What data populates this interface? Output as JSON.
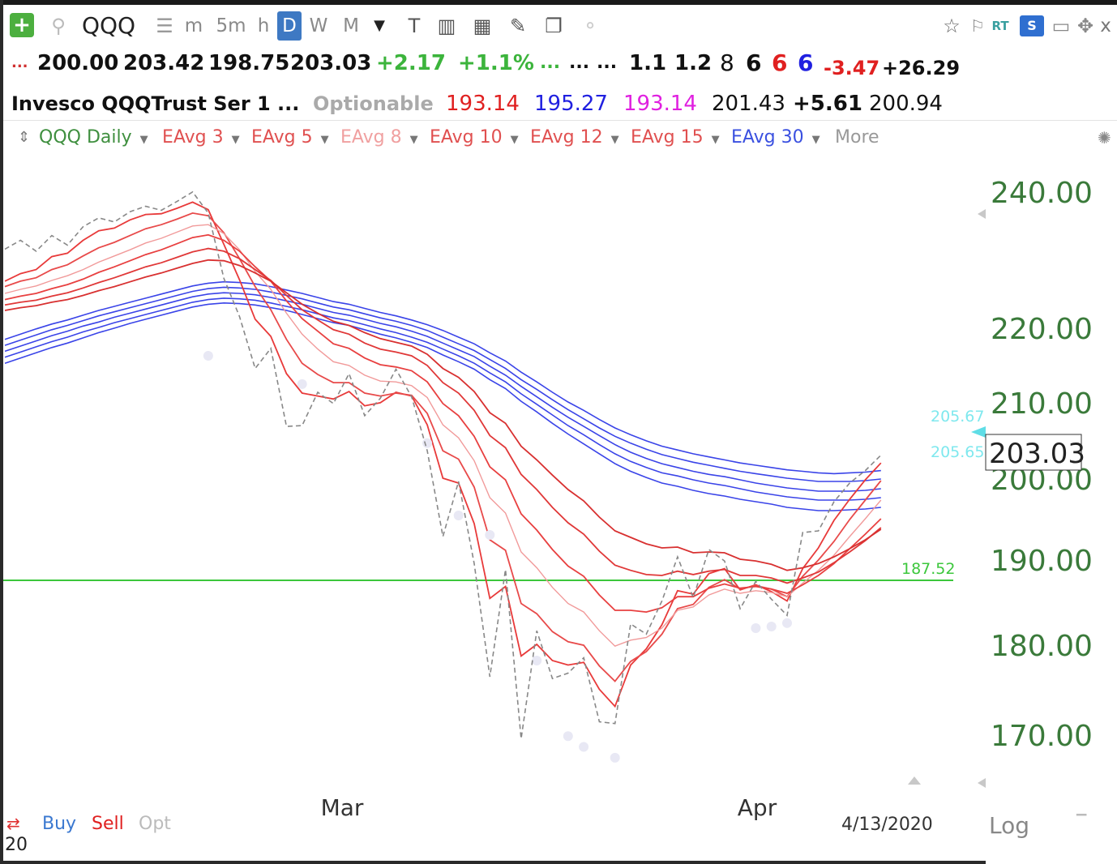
{
  "toolbar": {
    "add": "+",
    "symbol": "QQQ",
    "intervals": [
      "m",
      "5m",
      "h",
      "D",
      "W",
      "M"
    ],
    "active_interval": "D",
    "rt_label": "RT",
    "s_label": "S",
    "close_label": "x"
  },
  "quote": {
    "prefix": "...",
    "open": "200.00",
    "high": "203.42",
    "low": "198.75",
    "close": "203.03",
    "change": "+2.17",
    "change_pct": "+1.1%",
    "dots1": "...",
    "dots2": "...",
    "dots3": "...",
    "v1": "1.1",
    "v2": "1.2",
    "n1": "8",
    "n2": "6",
    "n3": "6",
    "n4": "6",
    "neg": "-3.47",
    "pos": "+26.29"
  },
  "quote2": {
    "name": "Invesco QQQTrust Ser 1",
    "dots": "...",
    "optionable": "Optionable",
    "p1": "193.14",
    "p2": "195.27",
    "p3": "193.14",
    "p4": "201.43",
    "p5": "+5.61",
    "p6": "200.94"
  },
  "indicators": [
    {
      "label": "QQQ Daily",
      "color": "#3f8f3f"
    },
    {
      "label": "EAvg 3",
      "color": "#e05050"
    },
    {
      "label": "EAvg 5",
      "color": "#e05050"
    },
    {
      "label": "EAvg 8",
      "color": "#f0a0a0"
    },
    {
      "label": "EAvg 10",
      "color": "#e05050"
    },
    {
      "label": "EAvg 12",
      "color": "#e05050"
    },
    {
      "label": "EAvg 15",
      "color": "#e05050"
    },
    {
      "label": "EAvg 30",
      "color": "#3a50e0"
    }
  ],
  "more_label": "More",
  "chart_data": {
    "type": "line",
    "x_ticks": [
      "Mar",
      "Apr"
    ],
    "y_ticks": [
      "240.00",
      "220.00",
      "210.00",
      "200.00",
      "190.00",
      "180.00",
      "170.00"
    ],
    "ylim": [
      165,
      243
    ],
    "scale": "log",
    "last_price": "203.03",
    "last_price_value": 203.03,
    "horizontal_line": {
      "value": 187.52,
      "label": "187.52",
      "color": "#3cc73c"
    },
    "marker_labels": [
      {
        "value": 205.67,
        "label": "205.67"
      },
      {
        "value": 205.65,
        "label": "205.65"
      }
    ],
    "date_label": "4/13/2020",
    "log_label": "Log",
    "footer_buttons": [
      "Buy",
      "Sell",
      "Opt"
    ],
    "corner_label": "20",
    "price_series": [
      231.5,
      232.8,
      231.2,
      233.5,
      232.1,
      234.8,
      236.1,
      235.5,
      237.0,
      237.8,
      237.2,
      238.5,
      239.9,
      236.8,
      227.2,
      221.6,
      214.5,
      217.2,
      206.8,
      206.9,
      211.3,
      209.8,
      213.8,
      208.2,
      210.5,
      214.4,
      210.7,
      203.6,
      192.8,
      199.6,
      189.5,
      176.4,
      188.8,
      169.5,
      181.6,
      176.2,
      176.8,
      178.5,
      171.4,
      171.2,
      182.4,
      181.2,
      185.1,
      190.3,
      185.5,
      191.2,
      189.8,
      184.2,
      187.4,
      185.3,
      183.4,
      193.3,
      193.5,
      197.1,
      199.4,
      201.0,
      203.03
    ],
    "ema_fast": [
      [
        226.8,
        227.9,
        228.5,
        230.4,
        230.9,
        232.8,
        234.2,
        234.6,
        235.8,
        236.6,
        236.7,
        237.5,
        238.4,
        237.3,
        232.2,
        227.0,
        221.2,
        218.8,
        213.8,
        211.2,
        210.8,
        210.4,
        211.4,
        209.5,
        209.9,
        211.3,
        210.8,
        207.0,
        200.0,
        199.4,
        194.4,
        185.4,
        186.8,
        178.7,
        180.0,
        178.2,
        177.7,
        178.0,
        175.0,
        173.1,
        177.7,
        179.5,
        182.3,
        186.3,
        185.9,
        188.3,
        188.9,
        186.4,
        187.0,
        186.2,
        185.1,
        188.9,
        191.4,
        194.8,
        197.4,
        199.8,
        202.0
      ],
      [
        226.0,
        226.8,
        227.3,
        228.5,
        229.2,
        230.5,
        231.7,
        232.5,
        233.5,
        234.5,
        235.1,
        235.9,
        236.8,
        236.4,
        233.9,
        230.1,
        226.0,
        222.6,
        218.4,
        215.2,
        213.7,
        212.6,
        212.6,
        211.2,
        210.8,
        211.2,
        210.9,
        208.5,
        203.6,
        202.5,
        198.9,
        192.4,
        191.1,
        184.8,
        183.6,
        181.5,
        180.3,
        179.9,
        177.6,
        175.9,
        178.1,
        179.2,
        181.2,
        184.2,
        184.7,
        186.7,
        187.6,
        186.5,
        186.9,
        186.5,
        185.6,
        188.0,
        189.9,
        192.2,
        194.9,
        197.3,
        199.7
      ],
      [
        225.0,
        225.6,
        226.1,
        226.9,
        227.6,
        228.5,
        229.6,
        230.5,
        231.4,
        232.4,
        233.1,
        234.0,
        234.9,
        235.1,
        233.8,
        231.4,
        228.2,
        225.6,
        222.1,
        219.1,
        217.1,
        215.4,
        214.9,
        213.6,
        212.8,
        212.7,
        212.2,
        210.6,
        207.0,
        205.3,
        202.3,
        197.6,
        195.7,
        190.9,
        189.0,
        186.7,
        184.8,
        183.8,
        181.6,
        179.8,
        180.5,
        180.8,
        181.9,
        184.0,
        184.4,
        185.8,
        186.5,
        186.0,
        186.3,
        186.1,
        185.6,
        187.2,
        188.7,
        190.5,
        192.8,
        195.0,
        197.3
      ],
      [
        224.1,
        224.6,
        225.0,
        225.7,
        226.3,
        227.1,
        228.1,
        228.9,
        229.8,
        230.7,
        231.4,
        232.3,
        233.2,
        233.6,
        232.8,
        231.2,
        228.9,
        226.8,
        223.9,
        221.3,
        219.5,
        217.8,
        217.2,
        215.9,
        215.0,
        214.7,
        214.2,
        212.7,
        209.8,
        208.2,
        205.5,
        201.5,
        199.8,
        195.6,
        193.6,
        191.2,
        189.2,
        188.0,
        185.8,
        184.0,
        184.0,
        183.8,
        184.3,
        185.6,
        185.6,
        186.6,
        187.1,
        186.6,
        186.8,
        186.5,
        186.0,
        187.0,
        188.1,
        189.5,
        191.3,
        193.1,
        195.0
      ],
      [
        223.3,
        223.7,
        224.0,
        224.6,
        225.1,
        225.8,
        226.6,
        227.3,
        228.1,
        228.9,
        229.5,
        230.3,
        231.1,
        231.6,
        231.2,
        230.1,
        228.5,
        226.9,
        224.7,
        222.6,
        221.1,
        219.7,
        219.1,
        217.9,
        217.1,
        216.7,
        216.2,
        214.9,
        212.6,
        211.2,
        208.9,
        205.6,
        204.0,
        200.5,
        198.6,
        196.4,
        194.5,
        193.1,
        191.0,
        189.3,
        188.7,
        188.2,
        188.1,
        188.6,
        188.2,
        188.6,
        188.8,
        188.1,
        188.1,
        187.8,
        187.2,
        187.8,
        188.5,
        189.6,
        190.9,
        192.3,
        193.9
      ],
      [
        222.5,
        222.9,
        223.2,
        223.7,
        224.1,
        224.7,
        225.4,
        226.0,
        226.7,
        227.4,
        228.0,
        228.7,
        229.4,
        229.9,
        229.8,
        229.1,
        228.0,
        226.8,
        225.1,
        223.4,
        222.1,
        220.9,
        220.3,
        219.3,
        218.5,
        218.0,
        217.5,
        216.4,
        214.5,
        213.3,
        211.4,
        208.6,
        207.2,
        204.2,
        202.4,
        200.4,
        198.6,
        197.2,
        195.2,
        193.5,
        192.7,
        191.9,
        191.4,
        191.5,
        190.8,
        190.9,
        190.8,
        190.0,
        189.8,
        189.4,
        188.7,
        189.0,
        189.5,
        190.3,
        191.3,
        192.4,
        193.7
      ]
    ],
    "ema_slow": [
      [
        215.2,
        215.9,
        216.6,
        217.3,
        217.9,
        218.6,
        219.3,
        219.9,
        220.6,
        221.2,
        221.8,
        222.4,
        223.0,
        223.4,
        223.6,
        223.5,
        223.3,
        222.9,
        222.5,
        221.9,
        221.3,
        220.7,
        220.3,
        219.7,
        219.1,
        218.6,
        218.0,
        217.3,
        216.3,
        215.4,
        214.4,
        213.0,
        211.8,
        210.1,
        208.7,
        207.2,
        205.8,
        204.5,
        203.2,
        201.9,
        200.9,
        200.1,
        199.4,
        199.0,
        198.5,
        198.1,
        197.8,
        197.4,
        197.1,
        196.8,
        196.4,
        196.2,
        196.0,
        196.0,
        196.1,
        196.2,
        196.4
      ],
      [
        216.0,
        216.7,
        217.4,
        218.1,
        218.7,
        219.4,
        220.0,
        220.7,
        221.3,
        221.9,
        222.5,
        223.1,
        223.7,
        224.1,
        224.3,
        224.2,
        224.0,
        223.6,
        223.1,
        222.6,
        222.0,
        221.4,
        221.0,
        220.4,
        219.8,
        219.3,
        218.7,
        218.0,
        217.1,
        216.2,
        215.2,
        213.9,
        212.7,
        211.1,
        209.7,
        208.3,
        206.9,
        205.7,
        204.4,
        203.2,
        202.2,
        201.4,
        200.7,
        200.3,
        199.8,
        199.4,
        199.1,
        198.7,
        198.3,
        198.0,
        197.7,
        197.5,
        197.3,
        197.3,
        197.3,
        197.4,
        197.6
      ],
      [
        216.8,
        217.5,
        218.2,
        218.9,
        219.5,
        220.2,
        220.8,
        221.5,
        222.1,
        222.7,
        223.3,
        223.9,
        224.5,
        224.9,
        225.1,
        225.0,
        224.8,
        224.4,
        223.9,
        223.4,
        222.8,
        222.2,
        221.8,
        221.2,
        220.6,
        220.1,
        219.5,
        218.8,
        217.9,
        217.0,
        216.1,
        214.8,
        213.6,
        212.1,
        210.7,
        209.3,
        208.0,
        206.8,
        205.6,
        204.4,
        203.4,
        202.6,
        201.9,
        201.4,
        200.9,
        200.5,
        200.2,
        199.8,
        199.4,
        199.1,
        198.8,
        198.6,
        198.4,
        198.4,
        198.4,
        198.5,
        198.7
      ],
      [
        217.6,
        218.3,
        219.0,
        219.7,
        220.3,
        221.0,
        221.7,
        222.3,
        222.9,
        223.5,
        224.1,
        224.7,
        225.3,
        225.7,
        225.9,
        225.8,
        225.6,
        225.2,
        224.7,
        224.2,
        223.6,
        223.0,
        222.6,
        222.0,
        221.4,
        220.9,
        220.3,
        219.6,
        218.7,
        217.8,
        216.9,
        215.7,
        214.5,
        213.0,
        211.7,
        210.3,
        209.0,
        207.8,
        206.6,
        205.5,
        204.6,
        203.8,
        203.1,
        202.6,
        202.1,
        201.7,
        201.3,
        200.9,
        200.6,
        200.3,
        200.0,
        199.8,
        199.6,
        199.6,
        199.6,
        199.7,
        199.9
      ],
      [
        218.4,
        219.1,
        219.8,
        220.5,
        221.1,
        221.8,
        222.5,
        223.1,
        223.7,
        224.3,
        224.9,
        225.5,
        226.1,
        226.5,
        226.7,
        226.6,
        226.4,
        226.0,
        225.5,
        225.0,
        224.4,
        223.8,
        223.4,
        222.8,
        222.2,
        221.7,
        221.1,
        220.4,
        219.6,
        218.7,
        217.8,
        216.6,
        215.5,
        214.0,
        212.7,
        211.3,
        210.0,
        208.9,
        207.7,
        206.6,
        205.7,
        204.9,
        204.2,
        203.7,
        203.2,
        202.8,
        202.4,
        202.0,
        201.7,
        201.4,
        201.1,
        200.9,
        200.7,
        200.6,
        200.7,
        200.8,
        201.0
      ]
    ],
    "dot_series": [
      [
        13,
        216.2
      ],
      [
        19,
        212.4
      ],
      [
        27,
        204.6
      ],
      [
        29,
        195.4
      ],
      [
        31,
        193.0
      ],
      [
        34,
        178.2
      ],
      [
        36,
        169.8
      ],
      [
        37,
        168.6
      ],
      [
        39,
        167.4
      ],
      [
        48,
        181.9
      ],
      [
        49,
        182.1
      ],
      [
        50,
        182.5
      ]
    ]
  }
}
